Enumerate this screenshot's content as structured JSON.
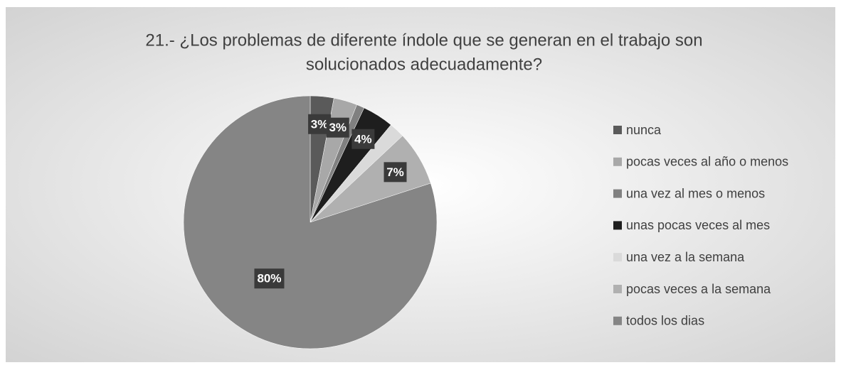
{
  "chart_data": {
    "type": "pie",
    "title": [
      "21.- ¿Los problemas de diferente índole que se generan en el trabajo son",
      "solucionados adecuadamente?"
    ],
    "categories": [
      "nunca",
      "pocas veces al año o menos",
      "una vez al mes o menos",
      "unas pocas veces al mes",
      "una vez a la semana",
      "pocas veces a la semana",
      "todos los dias"
    ],
    "values": [
      3,
      3,
      1,
      4,
      2,
      7,
      80
    ],
    "value_labels": [
      "3%",
      "3%",
      null,
      "4%",
      null,
      "7%",
      "80%"
    ],
    "colors": [
      "#5a5a5a",
      "#a8a8a8",
      "#808080",
      "#1e1e1e",
      "#dadada",
      "#b0b0b0",
      "#858585"
    ],
    "legend": "right"
  }
}
